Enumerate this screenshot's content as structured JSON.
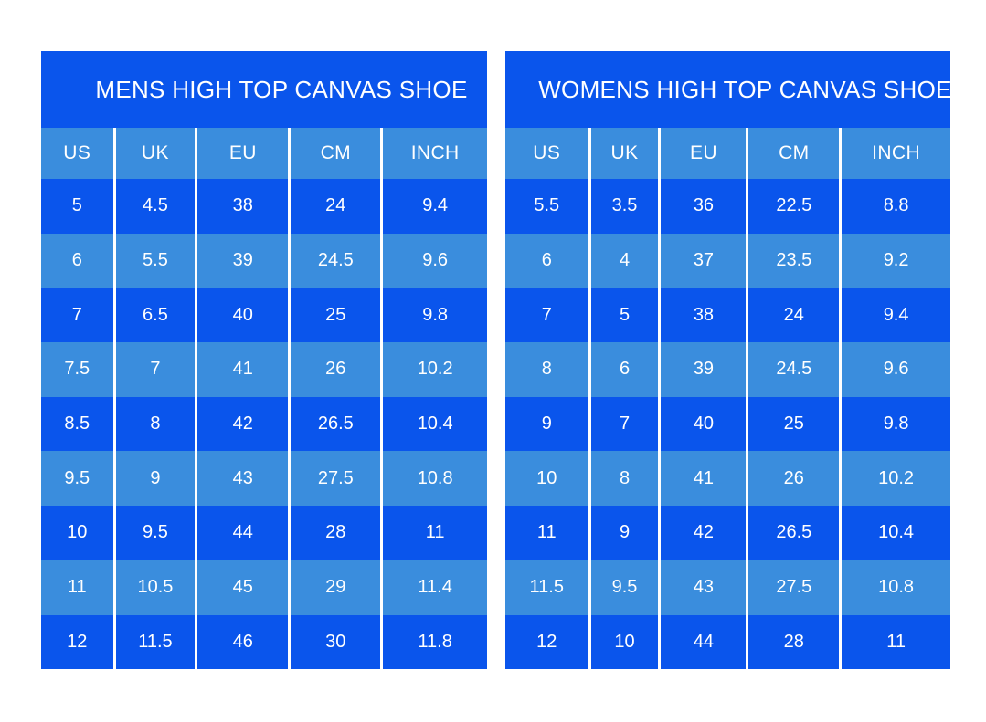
{
  "colors": {
    "dark_blue": "#0a55ec",
    "light_blue": "#3a8ddd",
    "text": "#ffffff",
    "page_background": "#ffffff"
  },
  "chart_data": [
    {
      "type": "table",
      "title": "MENS HIGH TOP CANVAS SHOE",
      "columns": [
        "US",
        "UK",
        "EU",
        "CM",
        "INCH"
      ],
      "rows": [
        [
          "5",
          "4.5",
          "38",
          "24",
          "9.4"
        ],
        [
          "6",
          "5.5",
          "39",
          "24.5",
          "9.6"
        ],
        [
          "7",
          "6.5",
          "40",
          "25",
          "9.8"
        ],
        [
          "7.5",
          "7",
          "41",
          "26",
          "10.2"
        ],
        [
          "8.5",
          "8",
          "42",
          "26.5",
          "10.4"
        ],
        [
          "9.5",
          "9",
          "43",
          "27.5",
          "10.8"
        ],
        [
          "10",
          "9.5",
          "44",
          "28",
          "11"
        ],
        [
          "11",
          "10.5",
          "45",
          "29",
          "11.4"
        ],
        [
          "12",
          "11.5",
          "46",
          "30",
          "11.8"
        ]
      ]
    },
    {
      "type": "table",
      "title": "WOMENS HIGH TOP CANVAS SHOE",
      "columns": [
        "US",
        "UK",
        "EU",
        "CM",
        "INCH"
      ],
      "rows": [
        [
          "5.5",
          "3.5",
          "36",
          "22.5",
          "8.8"
        ],
        [
          "6",
          "4",
          "37",
          "23.5",
          "9.2"
        ],
        [
          "7",
          "5",
          "38",
          "24",
          "9.4"
        ],
        [
          "8",
          "6",
          "39",
          "24.5",
          "9.6"
        ],
        [
          "9",
          "7",
          "40",
          "25",
          "9.8"
        ],
        [
          "10",
          "8",
          "41",
          "26",
          "10.2"
        ],
        [
          "11",
          "9",
          "42",
          "26.5",
          "10.4"
        ],
        [
          "11.5",
          "9.5",
          "43",
          "27.5",
          "10.8"
        ],
        [
          "12",
          "10",
          "44",
          "28",
          "11"
        ]
      ]
    }
  ]
}
